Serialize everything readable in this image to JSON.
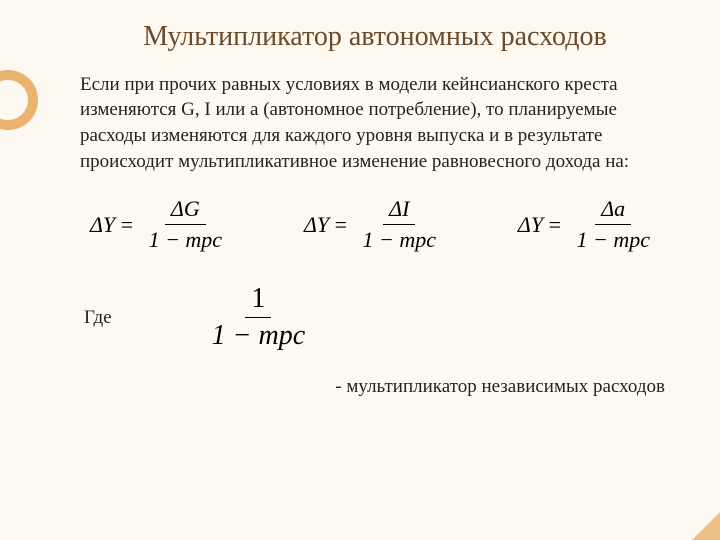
{
  "title": "Мультипликатор автономных расходов",
  "body": "Если при прочих равных условиях в модели кейнсианского креста изменяются G, I или a (автономное потребление), то планируемые расходы изменяются для каждого уровня выпуска и в результате происходит мультипликативное изменение равновесного дохода на:",
  "formulas": {
    "f1_lhs": "ΔY",
    "f1_num": "ΔG",
    "f1_den": "1 − mpc",
    "f2_lhs": "ΔY",
    "f2_num": "ΔI",
    "f2_den": "1 − mpc",
    "f3_lhs": "ΔY",
    "f3_num": "Δa",
    "f3_den": "1 − mpc",
    "mult_num": "1",
    "mult_den": "1 − mpc"
  },
  "where_label": "Где",
  "footer": "- мультипликатор независимых расходов",
  "colors": {
    "background": "#fdf8f0",
    "title": "#6b4a2a",
    "text": "#222222",
    "accent": "#e8a857"
  },
  "fonts": {
    "title_size": 28,
    "body_size": 19,
    "formula_size": 22,
    "formula_big_size": 28
  }
}
